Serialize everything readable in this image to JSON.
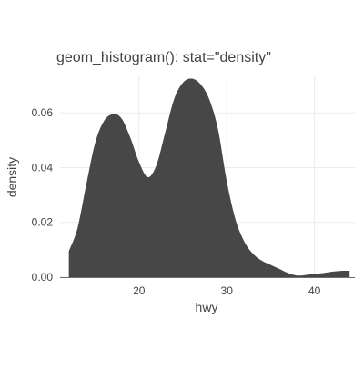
{
  "chart_data": {
    "type": "area",
    "title": "geom_histogram(): stat=\"density\"",
    "xlabel": "hwy",
    "ylabel": "density",
    "xlim": [
      11,
      44.6
    ],
    "ylim": [
      0,
      0.074
    ],
    "x_ticks": [
      20,
      30,
      40
    ],
    "x_tick_labels": [
      "20",
      "30",
      "40"
    ],
    "y_ticks": [
      0,
      0.02,
      0.04,
      0.06
    ],
    "y_tick_labels": [
      "0.00",
      "0.02",
      "0.04",
      "0.06"
    ],
    "grid": true,
    "fill_color": "#474747",
    "series": [
      {
        "x": [
          12,
          13,
          14,
          15,
          16,
          17,
          18,
          19,
          20,
          21,
          22,
          23,
          24,
          25,
          26,
          27,
          28,
          29,
          30,
          31,
          32,
          33,
          34,
          35,
          36,
          37,
          38,
          39,
          40,
          41,
          42,
          43,
          44
        ],
        "values": [
          0.0095,
          0.018,
          0.034,
          0.049,
          0.057,
          0.0595,
          0.058,
          0.051,
          0.042,
          0.0365,
          0.041,
          0.053,
          0.065,
          0.071,
          0.0725,
          0.0705,
          0.065,
          0.054,
          0.035,
          0.021,
          0.013,
          0.0085,
          0.006,
          0.0045,
          0.003,
          0.0015,
          0.0006,
          0.0008,
          0.0012,
          0.0015,
          0.002,
          0.0023,
          0.0023
        ]
      }
    ]
  },
  "colors": {
    "fill": "#474747",
    "grid": "#ebebeb",
    "axis_line": "#6e6e6e",
    "text": "#444444"
  }
}
